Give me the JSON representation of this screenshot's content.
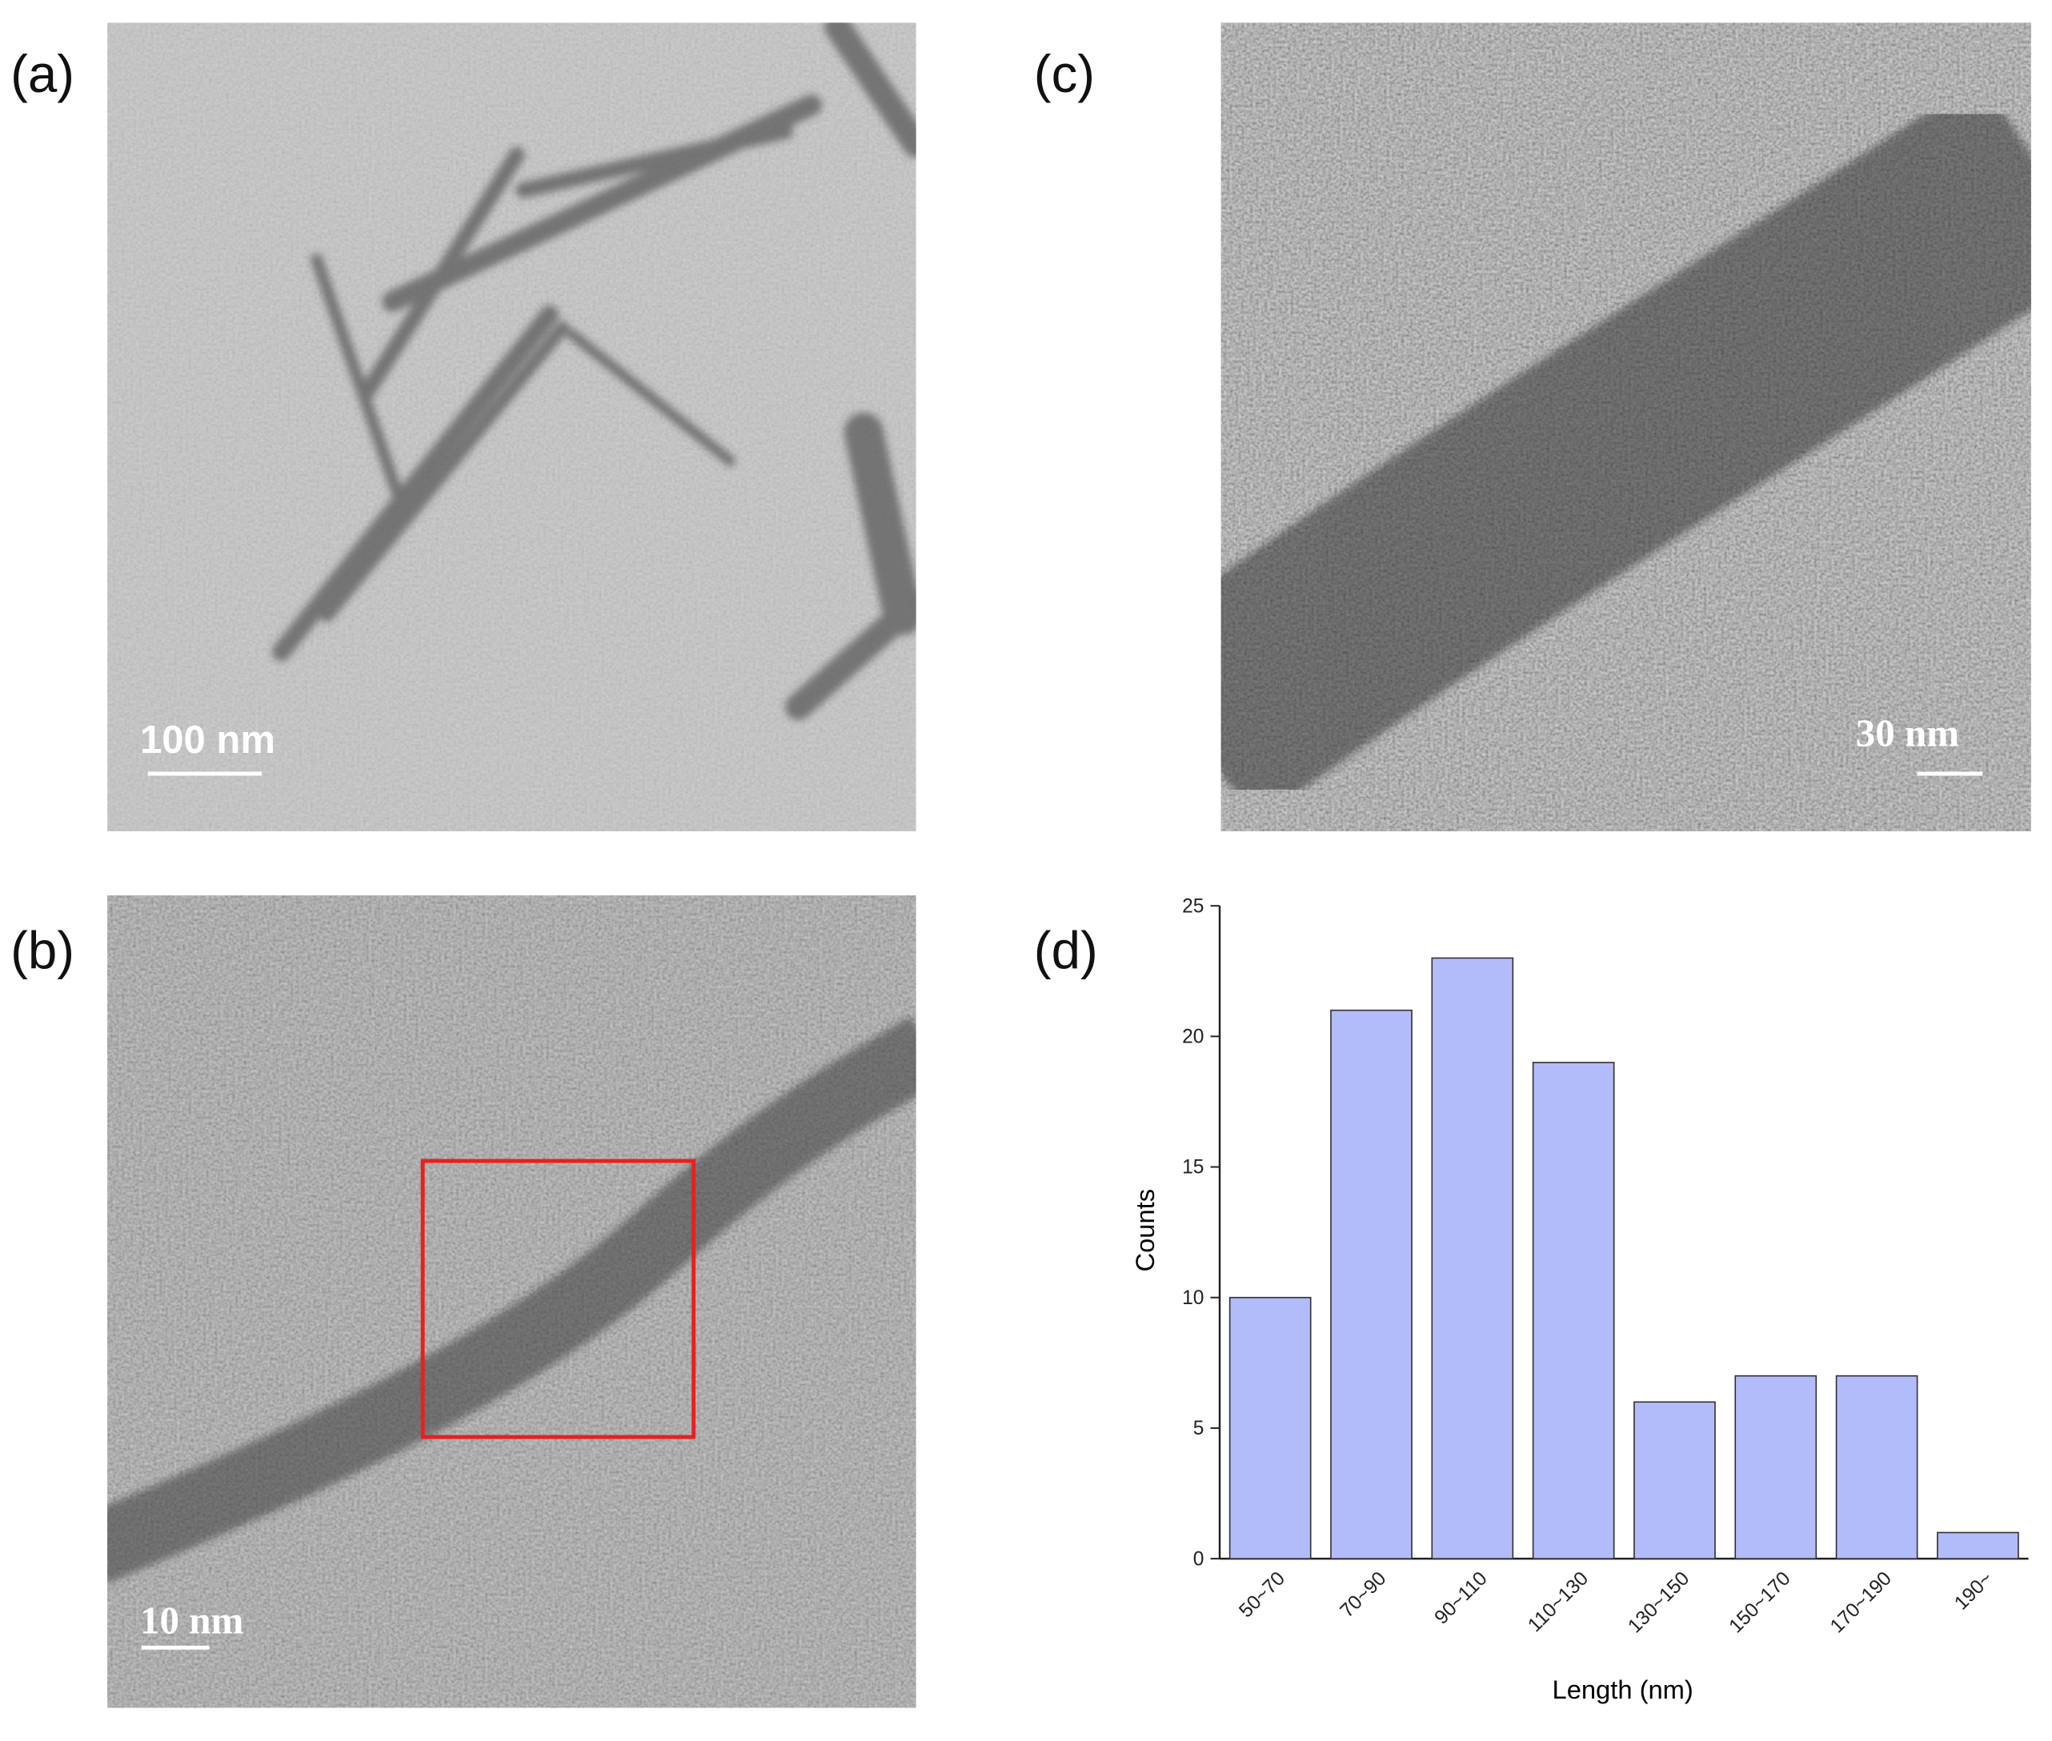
{
  "panels": [
    {
      "label": "(a)",
      "scale_bar": "100 nm"
    },
    {
      "label": "(b)",
      "scale_bar": "10 nm"
    },
    {
      "label": "(c)",
      "scale_bar": "30 nm"
    },
    {
      "label": "(d)"
    }
  ],
  "chart_data": {
    "type": "bar",
    "x_label": "Length (nm)",
    "y_label": "Counts",
    "categories": [
      "50~70",
      "70~90",
      "90~110",
      "110~130",
      "130~150",
      "150~170",
      "170~190",
      "190~"
    ],
    "values": [
      10,
      21,
      23,
      19,
      6,
      7,
      7,
      1
    ],
    "color": "#b3bcfa",
    "ylim": [
      0,
      25
    ],
    "yticks": [
      0,
      5,
      10,
      15,
      20,
      25
    ]
  }
}
